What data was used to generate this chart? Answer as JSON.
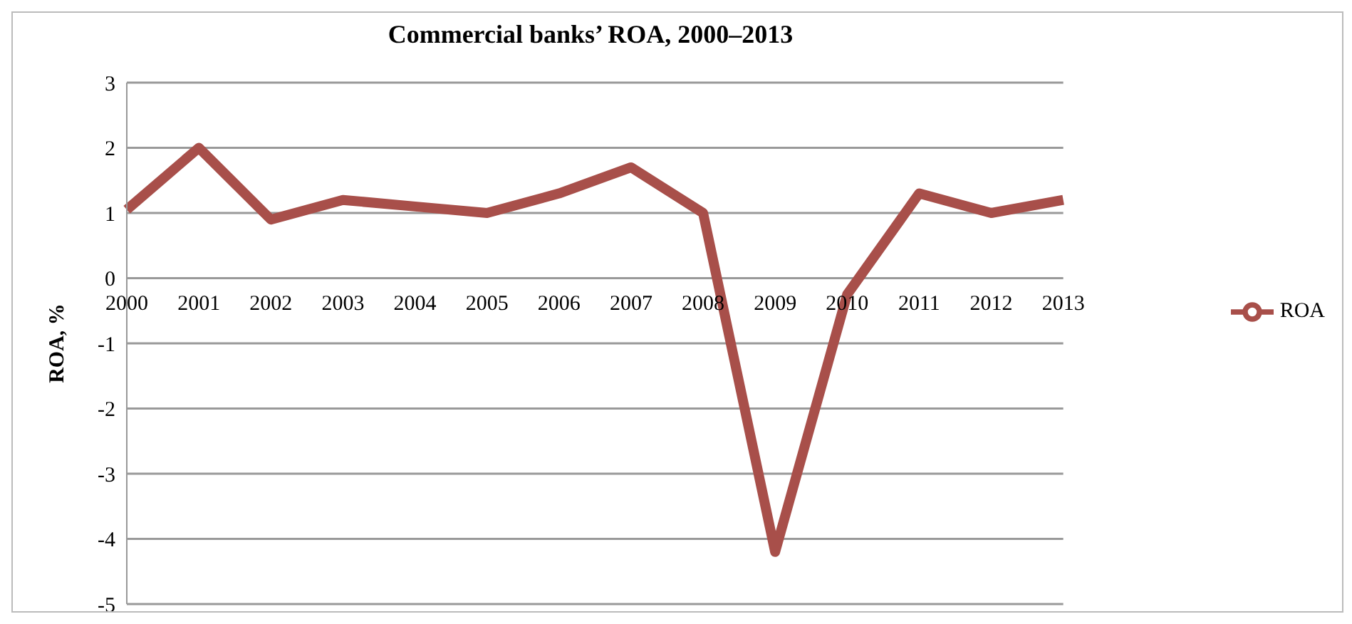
{
  "chart_data": {
    "type": "line",
    "title": "Commercial banks’ ROA, 2000–2013",
    "ylabel": "ROA, %",
    "categories": [
      "2000",
      "2001",
      "2002",
      "2003",
      "2004",
      "2005",
      "2006",
      "2007",
      "2008",
      "2009",
      "2010",
      "2011",
      "2012",
      "2013"
    ],
    "series": [
      {
        "name": "ROA",
        "color": "#a84f4a",
        "values": [
          1.05,
          2.0,
          0.9,
          1.2,
          1.1,
          1.0,
          1.3,
          1.7,
          1.0,
          -4.2,
          -0.25,
          1.3,
          1.0,
          1.2
        ]
      }
    ],
    "ylim": [
      -5,
      3
    ],
    "yticks": [
      -5,
      -4,
      -3,
      -2,
      -1,
      0,
      1,
      2,
      3
    ],
    "grid": "y",
    "legend": "right",
    "marker": "none",
    "line_style": "solid"
  }
}
